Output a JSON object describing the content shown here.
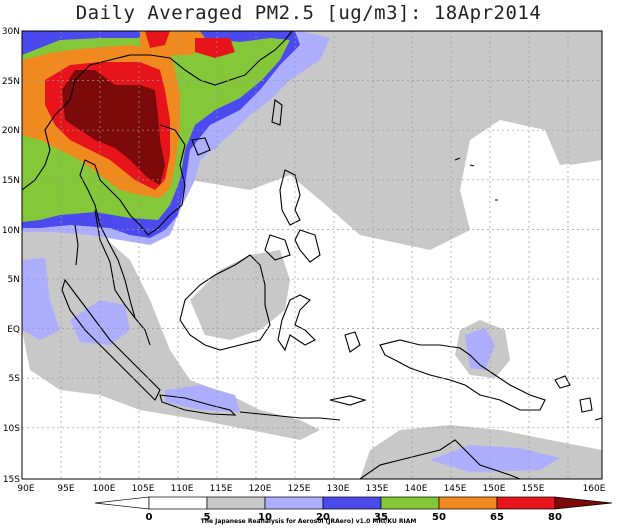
{
  "title": "Daily Averaged PM2.5 [ug/m3]: 18Apr2014",
  "credit": "The Japanese Reanalysis for Aerosol (JRAero) v1.0 MRI/KU RIAM",
  "map": {
    "lon_ticks": [
      "90E",
      "95E",
      "100E",
      "105E",
      "110E",
      "115E",
      "120E",
      "125E",
      "130E",
      "135E",
      "140E",
      "145E",
      "150E",
      "155E",
      "160E"
    ],
    "lat_ticks": [
      "30N",
      "25N",
      "20N",
      "15N",
      "10N",
      "5N",
      "EQ",
      "5S",
      "10S",
      "15S"
    ]
  },
  "colorbar": {
    "labels": [
      "0",
      "5",
      "10",
      "20",
      "35",
      "50",
      "65",
      "80"
    ],
    "colors": [
      "#ffffff",
      "#ffffff",
      "#c8c8c8",
      "#aeaefe",
      "#4a4aee",
      "#84c83a",
      "#f08a1e",
      "#e8141c",
      "#7c0a0a"
    ]
  },
  "colors": {
    "land_outline": "#000000",
    "grid": "#9a9a9a",
    "gray": "#c8c8c8",
    "lightblue": "#aeaefe",
    "blue": "#4a4aee",
    "green": "#84c83a",
    "orange": "#f08a1e",
    "red": "#e8141c",
    "darkred": "#7c0a0a"
  }
}
